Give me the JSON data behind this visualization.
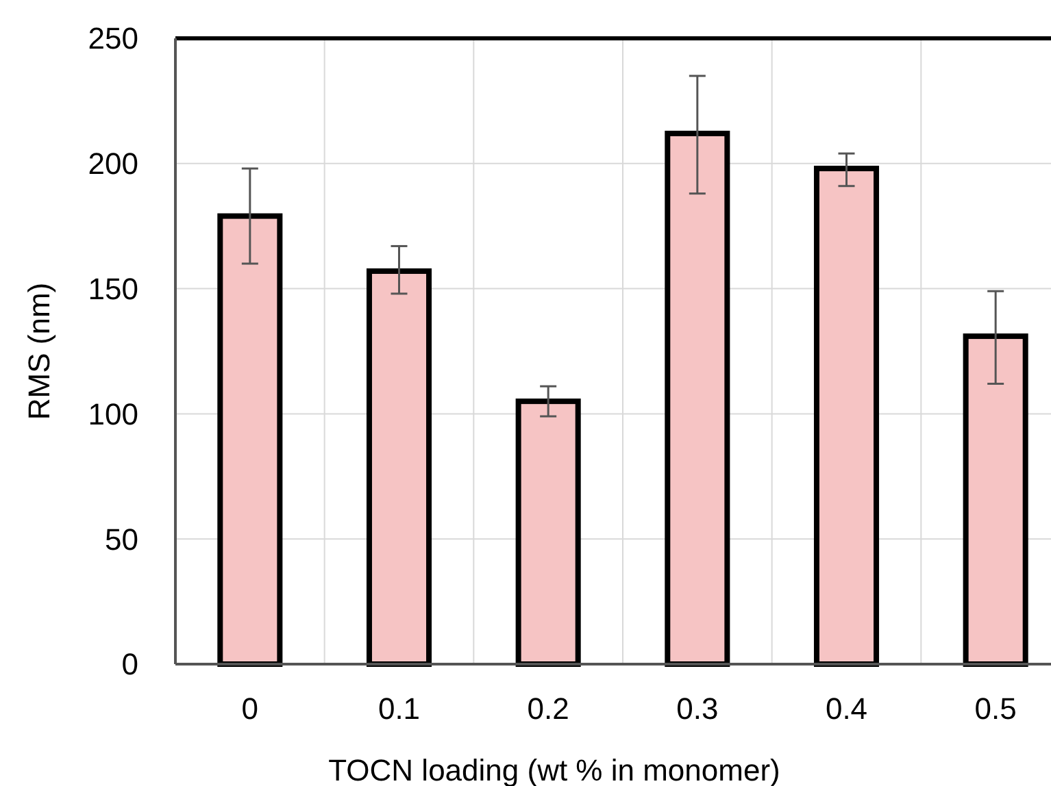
{
  "chart_data": {
    "type": "bar",
    "xlabel": "TOCN loading (wt % in monomer)",
    "ylabel": "RMS (nm)",
    "categories": [
      "0",
      "0.1",
      "0.2",
      "0.3",
      "0.4",
      "0.5"
    ],
    "values": [
      179,
      157,
      105,
      212,
      198,
      131
    ],
    "errors": [
      [
        160,
        198
      ],
      [
        148,
        167
      ],
      [
        99,
        111
      ],
      [
        188,
        235
      ],
      [
        191,
        204
      ],
      [
        112,
        149
      ]
    ],
    "color": "#f6c4c4",
    "ylim": [
      0,
      250
    ],
    "yticks": [
      0,
      50,
      100,
      150,
      200,
      250
    ],
    "grid": true
  }
}
